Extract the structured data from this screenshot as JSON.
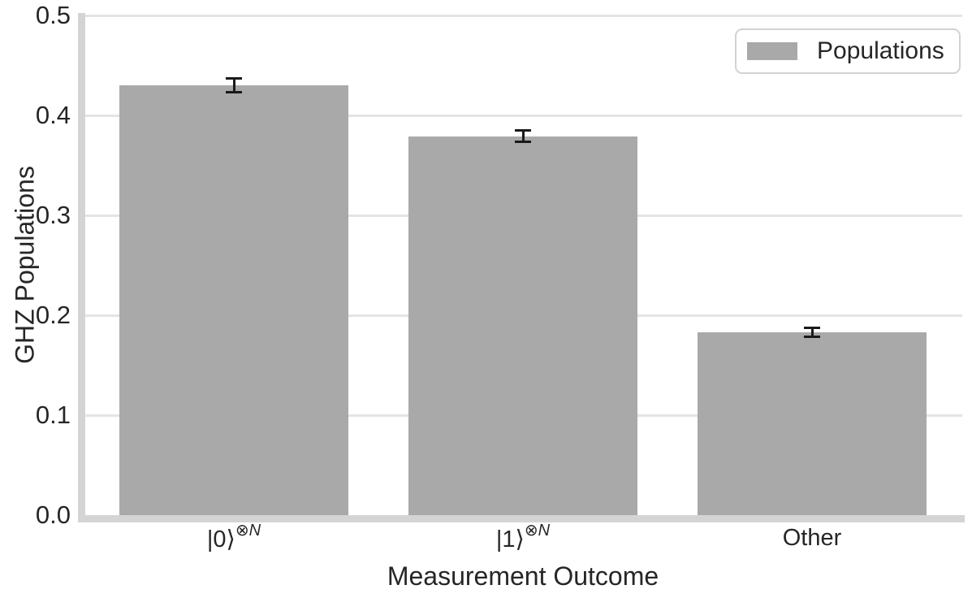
{
  "chart_data": {
    "type": "bar",
    "title": "",
    "xlabel": "Measurement Outcome",
    "ylabel": "GHZ Populations",
    "categories": [
      "|0⟩⊗N",
      "|1⟩⊗N",
      "Other"
    ],
    "category_parts": [
      {
        "base": "|0⟩",
        "sup_symbol": "⊗",
        "sup_var": "N"
      },
      {
        "base": "|1⟩",
        "sup_symbol": "⊗",
        "sup_var": "N"
      },
      {
        "base": "Other",
        "sup_symbol": "",
        "sup_var": ""
      }
    ],
    "series": [
      {
        "name": "Populations",
        "values": [
          0.43,
          0.379,
          0.183
        ],
        "errors": [
          0.008,
          0.007,
          0.006
        ]
      }
    ],
    "ylim": [
      0.0,
      0.5
    ],
    "yticks": [
      "0.0",
      "0.1",
      "0.2",
      "0.3",
      "0.4",
      "0.5"
    ],
    "grid": true,
    "legend": {
      "label": "Populations",
      "position": "upper-right"
    },
    "colors": {
      "bar": "#a9a9a9",
      "error": "#1a1a1a",
      "grid": "#e4e4e4",
      "spine": "#d4d4d4",
      "text": "#262626",
      "legend_border": "#d2d2d2"
    }
  }
}
